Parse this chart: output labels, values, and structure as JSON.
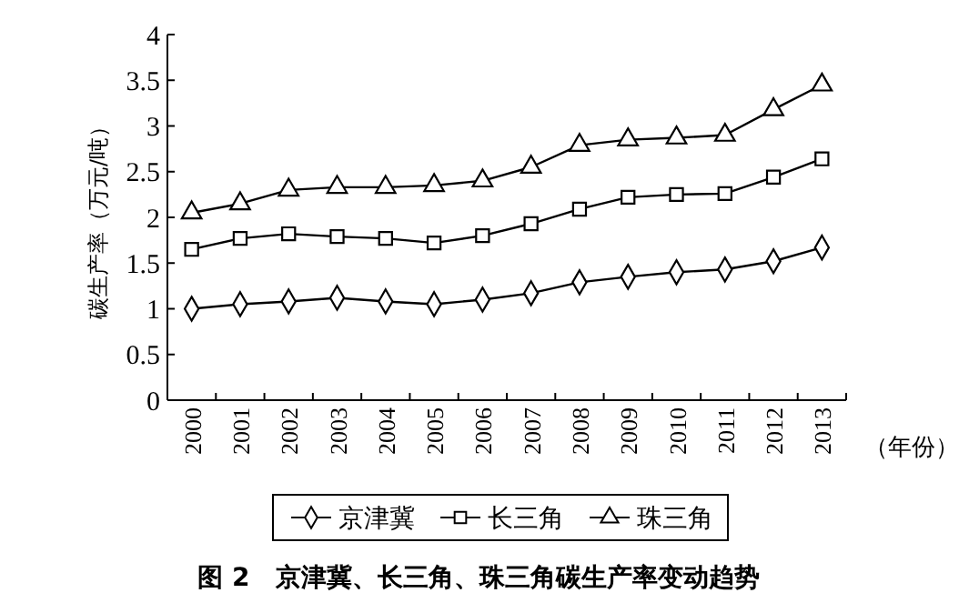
{
  "chart_data": {
    "type": "line",
    "title": "图 2　京津冀、长三角、珠三角碳生产率变动趋势",
    "xlabel": "（年份）",
    "ylabel": "碳生产率（万元/吨）",
    "categories": [
      "2000",
      "2001",
      "2002",
      "2003",
      "2004",
      "2005",
      "2006",
      "2007",
      "2008",
      "2009",
      "2010",
      "2011",
      "2012",
      "2013"
    ],
    "series": [
      {
        "name": "京津冀",
        "color": "#000000",
        "marker": "diamond",
        "values": [
          1.0,
          1.05,
          1.08,
          1.12,
          1.08,
          1.05,
          1.1,
          1.17,
          1.29,
          1.35,
          1.4,
          1.43,
          1.52,
          1.67
        ]
      },
      {
        "name": "长三角",
        "color": "#000000",
        "marker": "square",
        "values": [
          1.65,
          1.77,
          1.82,
          1.79,
          1.77,
          1.72,
          1.8,
          1.93,
          2.09,
          2.22,
          2.25,
          2.26,
          2.44,
          2.64
        ]
      },
      {
        "name": "珠三角",
        "color": "#000000",
        "marker": "triangle",
        "values": [
          2.05,
          2.15,
          2.3,
          2.33,
          2.33,
          2.35,
          2.4,
          2.55,
          2.79,
          2.85,
          2.87,
          2.9,
          3.18,
          3.45
        ]
      }
    ],
    "ylim": [
      0,
      4
    ],
    "yticks": [
      0,
      0.5,
      1,
      1.5,
      2,
      2.5,
      3,
      3.5,
      4
    ],
    "grid": false,
    "legend": "bottom",
    "line_style": "solid"
  }
}
